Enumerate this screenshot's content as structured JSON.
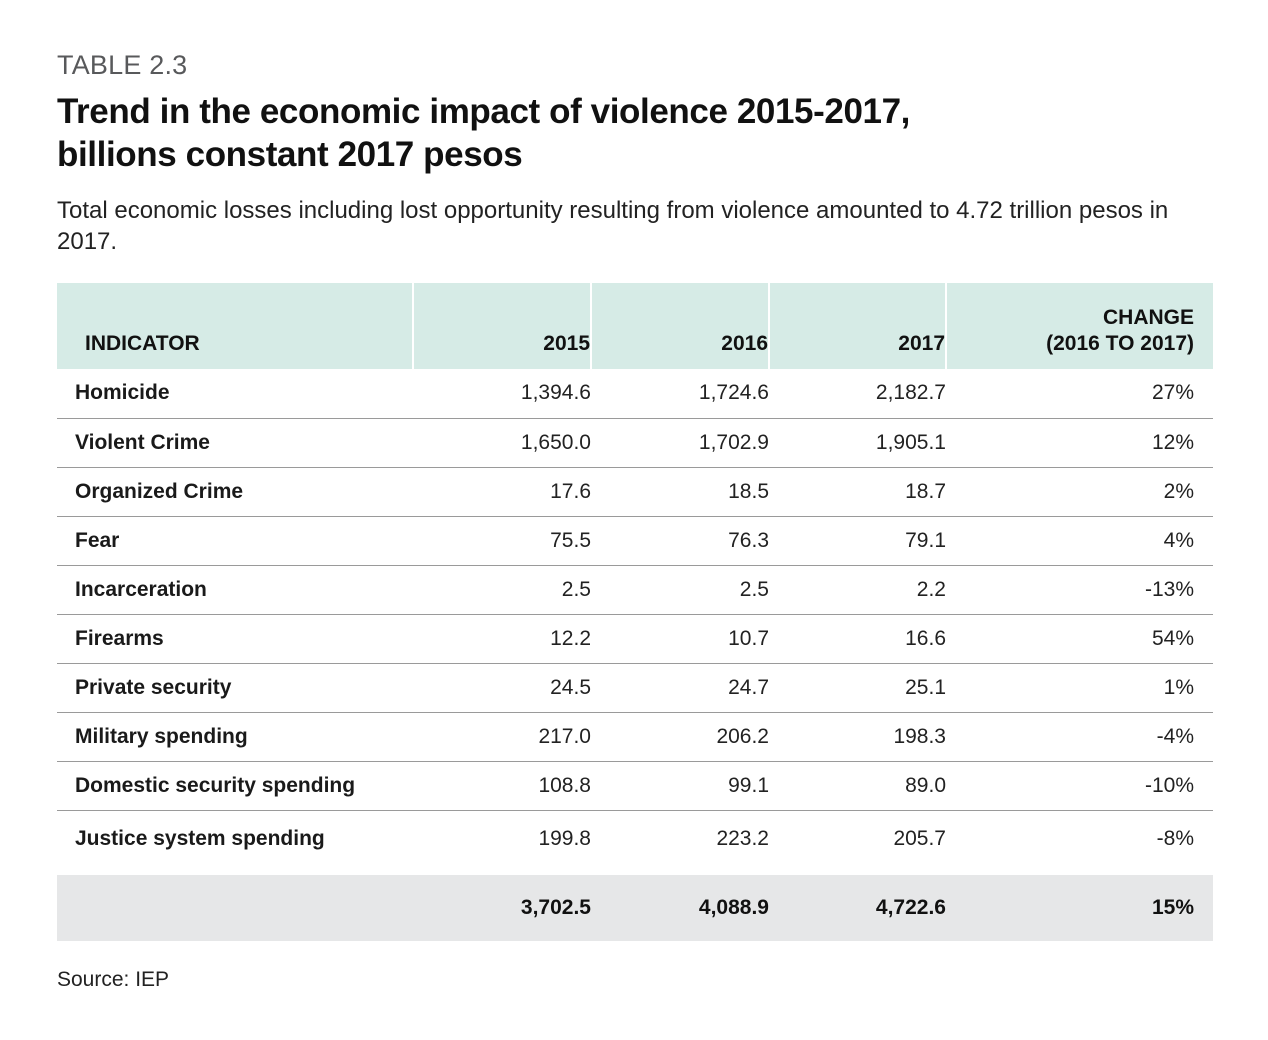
{
  "table_label": "TABLE 2.3",
  "title_lines": [
    "Trend in the economic impact of violence 2015-2017,",
    "billions constant 2017 pesos"
  ],
  "subtitle": "Total economic losses including lost opportunity resulting from violence amounted to 4.72 trillion pesos in 2017.",
  "columns": {
    "indicator": "INDICATOR",
    "y2015": "2015",
    "y2016": "2016",
    "y2017": "2017",
    "change_line1": "CHANGE",
    "change_line2": "(2016 TO 2017)"
  },
  "rows": [
    {
      "indicator": "Homicide",
      "y2015": "1,394.6",
      "y2016": "1,724.6",
      "y2017": "2,182.7",
      "change": "27%"
    },
    {
      "indicator": "Violent Crime",
      "y2015": "1,650.0",
      "y2016": "1,702.9",
      "y2017": "1,905.1",
      "change": "12%"
    },
    {
      "indicator": "Organized Crime",
      "y2015": "17.6",
      "y2016": "18.5",
      "y2017": "18.7",
      "change": "2%"
    },
    {
      "indicator": "Fear",
      "y2015": "75.5",
      "y2016": "76.3",
      "y2017": "79.1",
      "change": "4%"
    },
    {
      "indicator": "Incarceration",
      "y2015": "2.5",
      "y2016": "2.5",
      "y2017": "2.2",
      "change": "-13%"
    },
    {
      "indicator": "Firearms",
      "y2015": "12.2",
      "y2016": "10.7",
      "y2017": "16.6",
      "change": "54%"
    },
    {
      "indicator": "Private security",
      "y2015": "24.5",
      "y2016": "24.7",
      "y2017": "25.1",
      "change": "1%"
    },
    {
      "indicator": "Military spending",
      "y2015": "217.0",
      "y2016": "206.2",
      "y2017": "198.3",
      "change": "-4%"
    },
    {
      "indicator": "Domestic security spending",
      "y2015": "108.8",
      "y2016": "99.1",
      "y2017": "89.0",
      "change": "-10%"
    },
    {
      "indicator": "Justice system spending",
      "y2015": "199.8",
      "y2016": "223.2",
      "y2017": "205.7",
      "change": "-8%"
    }
  ],
  "total": {
    "indicator": "",
    "y2015": "3,702.5",
    "y2016": "4,088.9",
    "y2017": "4,722.6",
    "change": "15%"
  },
  "source": "Source: IEP",
  "colors": {
    "header_bg": "#d6ebe6",
    "total_bg": "#e6e7e8",
    "label_gray": "#58595b"
  }
}
